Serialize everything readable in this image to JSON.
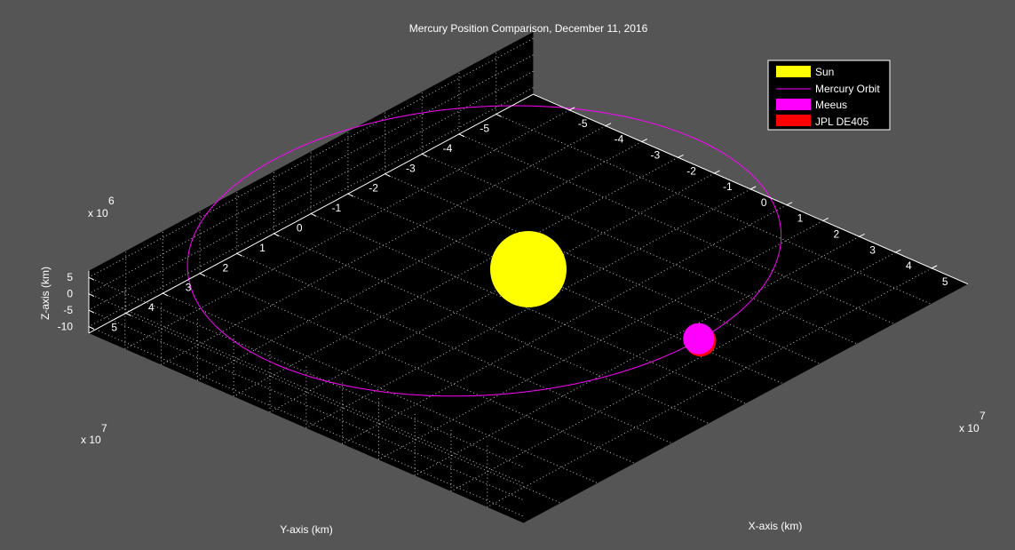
{
  "chart_data": {
    "type": "scatter",
    "title": "Mercury Position Comparison, December 11, 2016",
    "xlabel": "X-axis (km)",
    "ylabel": "Y-axis (km)",
    "zlabel": "Z-axis (km)",
    "x_exponent_label": "x 10",
    "x_exponent_power": "7",
    "y_exponent_label": "x 10",
    "y_exponent_power": "7",
    "z_exponent_label": "x 10",
    "z_exponent_power": "6",
    "xlim": [
      -6,
      6
    ],
    "ylim": [
      -6,
      6
    ],
    "zlim": [
      -12,
      7
    ],
    "x_ticks": [
      -5,
      -4,
      -3,
      -2,
      -1,
      0,
      1,
      2,
      3,
      4,
      5
    ],
    "y_ticks": [
      -5,
      -4,
      -3,
      -2,
      -1,
      0,
      1,
      2,
      3,
      4,
      5
    ],
    "z_ticks": [
      -10,
      -5,
      0,
      5
    ],
    "x_tick_labels": [
      "-5",
      "-4",
      "-3",
      "-2",
      "-1",
      "0",
      "1",
      "2",
      "3",
      "4",
      "5"
    ],
    "y_tick_labels": [
      "-5",
      "-4",
      "-3",
      "-2",
      "-1",
      "0",
      "1",
      "2",
      "3",
      "4",
      "5"
    ],
    "z_tick_labels": [
      "-10",
      "-5",
      "0",
      "5"
    ],
    "grid": true,
    "legend_position": "top-right",
    "legend": [
      {
        "label": "Sun",
        "color": "#ffff00",
        "kind": "patch"
      },
      {
        "label": "Mercury Orbit",
        "color": "#ff00ff",
        "kind": "line"
      },
      {
        "label": "Meeus",
        "color": "#ff00ff",
        "kind": "patch"
      },
      {
        "label": "JPL DE405",
        "color": "#ff0000",
        "kind": "patch"
      }
    ],
    "series": [
      {
        "name": "Sun",
        "color": "#ffff00",
        "x": 0,
        "y": 0,
        "z": 0,
        "radius": 1.0
      },
      {
        "name": "Mercury Orbit",
        "color": "#ff00ff",
        "semi_major": 5.79,
        "eccentricity": 0.2056,
        "perihelion_x": 4.6,
        "perihelion_y": -0.1
      },
      {
        "name": "Meeus",
        "color": "#ff00ff",
        "x": 4.6,
        "y": -0.1,
        "z": 0.4,
        "radius": 0.42
      },
      {
        "name": "JPL DE405",
        "color": "#ff0000",
        "x": 4.6,
        "y": -0.1,
        "z": 0.0,
        "radius": 0.42
      }
    ]
  },
  "colors": {
    "figure_background": "#555555",
    "axes_background": "#000000",
    "grid": "#bfbfbf",
    "text": "#ffffff"
  }
}
